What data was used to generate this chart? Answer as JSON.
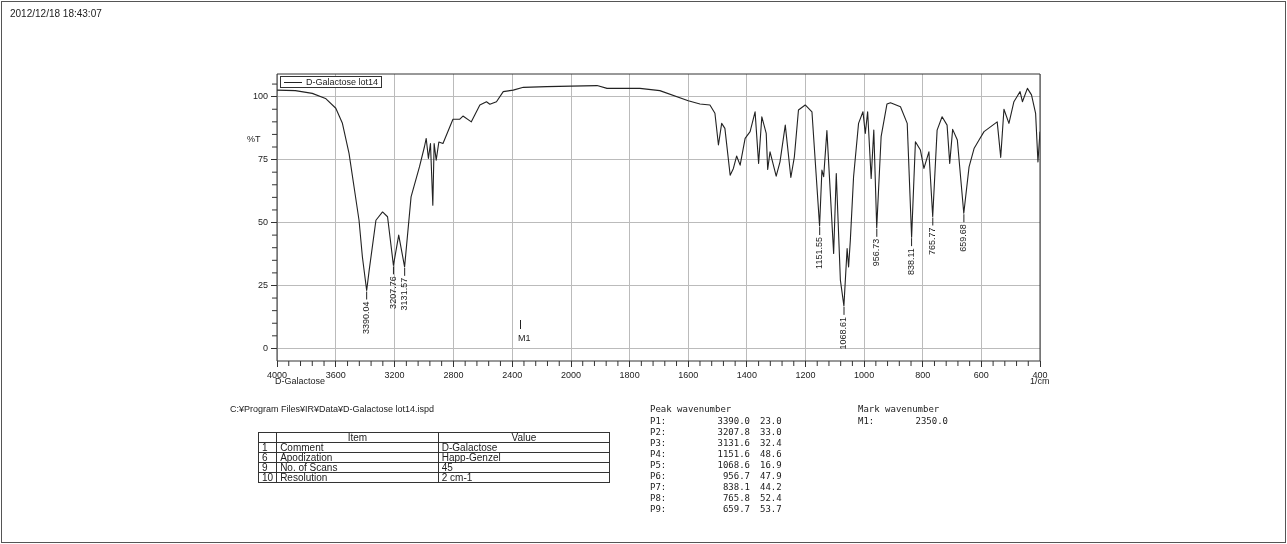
{
  "chart_data": [
    {
      "type": "line",
      "ylabel": "%T",
      "legend": "top left",
      "grid": true,
      "xlim": [
        4000,
        2000
      ],
      "ylim": [
        -5,
        109
      ],
      "xticks": [
        4000,
        {
          "value": 3920,
          "label": null
        },
        {
          "value": 3840,
          "label": null
        },
        {
          "value": 3760,
          "label": null
        },
        {
          "value": 3680,
          "label": null
        },
        3600,
        {
          "value": 3520,
          "label": null
        },
        {
          "value": 3440,
          "label": null
        },
        {
          "value": 3360,
          "label": null
        },
        {
          "value": 3280,
          "label": null
        },
        3200,
        {
          "value": 3120,
          "label": null
        },
        {
          "value": 3040,
          "label": null
        },
        {
          "value": 2960,
          "label": null
        },
        {
          "value": 2880,
          "label": null
        },
        2800,
        {
          "value": 2720,
          "label": null
        },
        {
          "value": 2640,
          "label": null
        },
        {
          "value": 2560,
          "label": null
        },
        {
          "value": 2480,
          "label": null
        },
        2400,
        {
          "value": 2320,
          "label": null
        },
        {
          "value": 2240,
          "label": null
        },
        {
          "value": 2160,
          "label": null
        },
        {
          "value": 2080,
          "label": null
        },
        2000
      ],
      "yticks": [
        0,
        {
          "value": 5,
          "label": null
        },
        {
          "value": 10,
          "label": null
        },
        {
          "value": 15,
          "label": null
        },
        {
          "value": 20,
          "label": null
        },
        25,
        {
          "value": 30,
          "label": null
        },
        {
          "value": 35,
          "label": null
        },
        {
          "value": 40,
          "label": null
        },
        {
          "value": 45,
          "label": null
        },
        50,
        {
          "value": 55,
          "label": null
        },
        {
          "value": 60,
          "label": null
        },
        {
          "value": 65,
          "label": null
        },
        {
          "value": 70,
          "label": null
        },
        75,
        {
          "value": 80,
          "label": null
        },
        {
          "value": 85,
          "label": null
        },
        {
          "value": 90,
          "label": null
        },
        {
          "value": 95,
          "label": null
        },
        100,
        {
          "value": 105,
          "label": null
        }
      ],
      "series": [
        {
          "name": "D-Galactose lot14",
          "color": "#222222",
          "x": [
            4000,
            3875,
            3760,
            3670,
            3600,
            3555,
            3510,
            3476,
            3442,
            3419,
            3390,
            3373,
            3327,
            3282,
            3248,
            3208,
            3172,
            3132,
            3088,
            3031,
            2997,
            2985,
            2970,
            2956,
            2940,
            2931,
            2917,
            2899,
            2871,
            2803,
            2758,
            2735,
            2678,
            2620,
            2575,
            2552,
            2507,
            2461,
            2393,
            2324,
            2165,
            2000
          ],
          "values": [
            102.6,
            102.4,
            101.3,
            99.3,
            95.4,
            89.4,
            77.5,
            64.2,
            50.9,
            36.3,
            23.0,
            31,
            50.9,
            54.2,
            52.3,
            33.0,
            45,
            32.4,
            60.2,
            72.1,
            80.1,
            83.4,
            75.5,
            81.4,
            56.9,
            81.4,
            74.8,
            82,
            81.4,
            91,
            91,
            92.3,
            90,
            96.7,
            98,
            97,
            98,
            102,
            102.6,
            103.7,
            104,
            104.2
          ]
        }
      ],
      "annotations": [
        "2012/12/18 18:43:07",
        "D-Galactose",
        "C:¥Program Files¥IR¥Data¥D-Galactose lot14.ispd",
        "\tItem\tValue",
        "1\tComment\tD-Galactose",
        "6\tApodization\tHapp-Genzel",
        "9\tNo. of Scans\t45",
        "10\tResolution\t2 cm-1",
        "Peak wavenumber",
        "P1:\t3390.0\t23.0",
        "P2:\t3207.8\t33.0",
        "P3:\t3131.6\t32.4",
        "P4:\t1151.6\t48.6",
        "P5:\t1068.6\t16.9",
        "P6:\t956.7\t47.9",
        "P7:\t838.1\t44.2",
        "P8:\t765.8\t52.4",
        "P9:\t659.7\t53.7",
        "Mark wavenumber",
        "M1:\t2350.0",
        "M1",
        {
          "text": "3390.04",
          "x": 3390.04,
          "y": 23.0
        },
        {
          "text": "3207.76",
          "x": 3207.76,
          "y": 33.0
        },
        {
          "text": "3131.57",
          "x": 3131.57,
          "y": 32.4
        }
      ]
    },
    {
      "type": "line",
      "xlabel": "1/cm",
      "grid": true,
      "tick_labels": "x",
      "xlim": [
        2000,
        400
      ],
      "ylim": [
        -5,
        109
      ],
      "xticks": [
        {
          "value": 1960,
          "label": null
        },
        {
          "value": 1920,
          "label": null
        },
        {
          "value": 1880,
          "label": null
        },
        {
          "value": 1840,
          "label": null
        },
        1800,
        {
          "value": 1760,
          "label": null
        },
        {
          "value": 1720,
          "label": null
        },
        {
          "value": 1680,
          "label": null
        },
        {
          "value": 1640,
          "label": null
        },
        1600,
        {
          "value": 1560,
          "label": null
        },
        {
          "value": 1520,
          "label": null
        },
        {
          "value": 1480,
          "label": null
        },
        {
          "value": 1440,
          "label": null
        },
        1400,
        {
          "value": 1360,
          "label": null
        },
        {
          "value": 1320,
          "label": null
        },
        {
          "value": 1280,
          "label": null
        },
        {
          "value": 1240,
          "label": null
        },
        1200,
        {
          "value": 1160,
          "label": null
        },
        {
          "value": 1120,
          "label": null
        },
        {
          "value": 1080,
          "label": null
        },
        {
          "value": 1040,
          "label": null
        },
        1000,
        {
          "value": 960,
          "label": null
        },
        {
          "value": 920,
          "label": null
        },
        {
          "value": 880,
          "label": null
        },
        {
          "value": 840,
          "label": null
        },
        800,
        {
          "value": 760,
          "label": null
        },
        {
          "value": 720,
          "label": null
        },
        {
          "value": 680,
          "label": null
        },
        {
          "value": 640,
          "label": null
        },
        600,
        {
          "value": 560,
          "label": null
        },
        {
          "value": 520,
          "label": null
        },
        {
          "value": 480,
          "label": null
        },
        {
          "value": 440,
          "label": null
        },
        400
      ],
      "yticks": [
        0,
        25,
        50,
        75,
        100
      ],
      "series": [
        {
          "color": "#222222",
          "x": [
            2000,
            1911,
            1877,
            1800,
            1765,
            1697,
            1600,
            1560,
            1526,
            1509,
            1497,
            1486,
            1475,
            1457,
            1446,
            1435,
            1423,
            1406,
            1389,
            1372,
            1360,
            1349,
            1334,
            1329,
            1321,
            1300,
            1287,
            1269,
            1250,
            1238,
            1224,
            1201,
            1178,
            1152,
            1144,
            1138,
            1127,
            1104,
            1095,
            1081,
            1069,
            1058,
            1053,
            1047,
            1036,
            1019,
            1004,
            996,
            988,
            976,
            967,
            957,
            942,
            922,
            910,
            876,
            853,
            838,
            825,
            808,
            796,
            779,
            766,
            751,
            734,
            717,
            708,
            698,
            682,
            660,
            642,
            625,
            608,
            591,
            546,
            534,
            523,
            506,
            489,
            468,
            460,
            443,
            429,
            415,
            407,
            400
          ],
          "values": [
            104.2,
            104.4,
            103.3,
            103.3,
            103.3,
            102.4,
            98.4,
            97.1,
            96.7,
            93.4,
            80.8,
            89.4,
            87.4,
            68.8,
            71.5,
            76.4,
            72.8,
            83.4,
            86.1,
            94,
            73.5,
            92,
            85.4,
            71.1,
            78.1,
            68.4,
            74.1,
            88.7,
            67.9,
            76.1,
            94.7,
            96.7,
            94,
            48.6,
            70.8,
            68.2,
            86.5,
            37.7,
            69.5,
            27.1,
            16.9,
            39.7,
            32.4,
            43,
            68.2,
            89.4,
            94,
            85.4,
            94,
            67.5,
            86.7,
            47.9,
            84.1,
            97.1,
            97.6,
            96,
            89.4,
            44.2,
            82.1,
            78.8,
            71.5,
            78.1,
            52.4,
            86.7,
            92,
            88.7,
            73.5,
            87,
            82.8,
            53.7,
            72.1,
            79.4,
            82.8,
            86.1,
            90,
            75.9,
            95,
            89.4,
            98,
            102,
            98,
            103.3,
            100.7,
            93.4,
            74.1,
            86.1
          ]
        }
      ],
      "annotations": [
        {
          "text": "1151.55",
          "x": 1151.55,
          "y": 48.6
        },
        {
          "text": "1068.61",
          "x": 1068.61,
          "y": 16.9
        },
        {
          "text": "956.73",
          "x": 956.73,
          "y": 47.9
        },
        {
          "text": "838.11",
          "x": 838.11,
          "y": 44.2
        },
        {
          "text": "765.77",
          "x": 765.77,
          "y": 52.4
        },
        {
          "text": "659.68",
          "x": 659.68,
          "y": 53.7
        }
      ]
    }
  ]
}
